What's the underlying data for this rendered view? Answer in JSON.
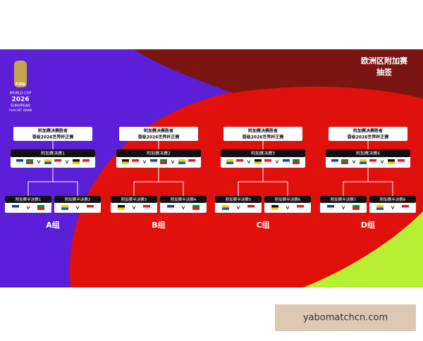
{
  "header": {
    "title": "欧洲区附加赛",
    "subtitle": "抽签"
  },
  "logo": {
    "fifa": "FIFA",
    "lines": [
      "WORLD CUP",
      "2026",
      "EUROPEAN",
      "PLAY-OFF DRAW"
    ]
  },
  "groups": [
    {
      "label": "A组",
      "winner": [
        "附加赛决赛胜者",
        "晋级2026世界杯正赛"
      ],
      "final": "附加赛决赛1",
      "semis": [
        "附加赛半决赛1",
        "附加赛半决赛2"
      ]
    },
    {
      "label": "B组",
      "winner": [
        "附加赛决赛胜者",
        "晋级2026世界杯正赛"
      ],
      "final": "附加赛决赛2",
      "semis": [
        "附加赛半决赛3",
        "附加赛半决赛4"
      ]
    },
    {
      "label": "C组",
      "winner": [
        "附加赛决赛胜者",
        "晋级2026世界杯正赛"
      ],
      "final": "附加赛决赛3",
      "semis": [
        "附加赛半决赛5",
        "附加赛半决赛6"
      ]
    },
    {
      "label": "D组",
      "winner": [
        "附加赛决赛胜者",
        "晋级2026世界杯正赛"
      ],
      "final": "附加赛决赛4",
      "semis": [
        "附加赛半决赛7",
        "附加赛半决赛8"
      ]
    }
  ],
  "watermark": "yabomatchcn.com"
}
